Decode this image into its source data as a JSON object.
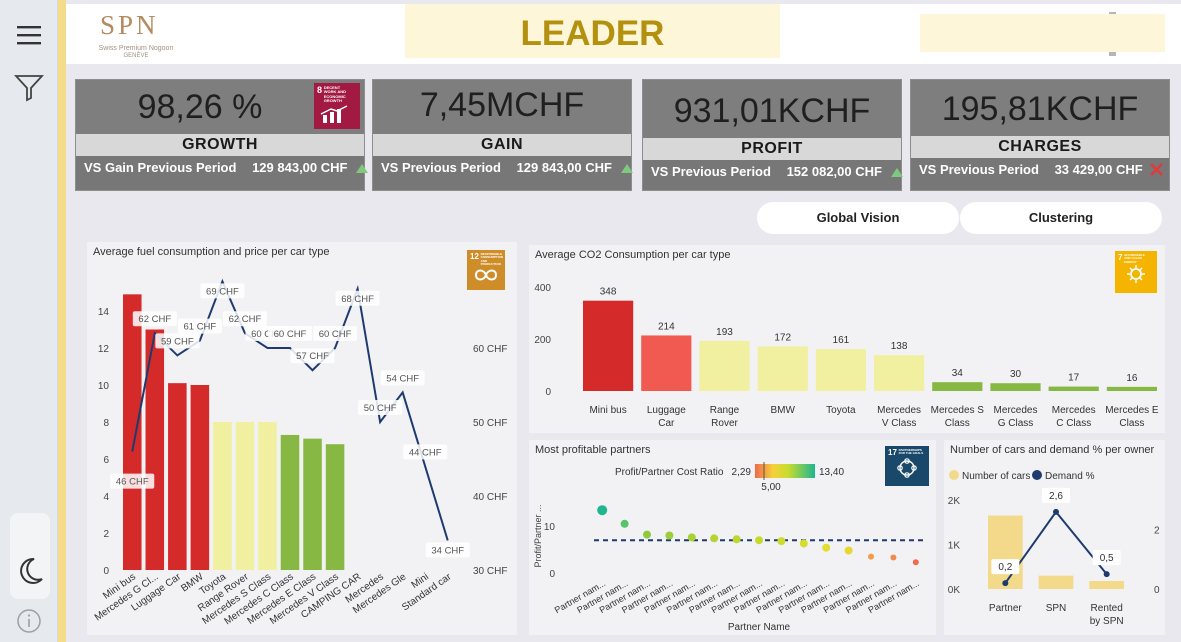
{
  "logo": {
    "name": "SPN",
    "subtitle": "Swiss Premium Nogoon",
    "city": "GENÈVE"
  },
  "header": {
    "title": "LEADER"
  },
  "colors": {
    "red": "#d42a2a",
    "light_red": "#f05a50",
    "yellow": "#f1f0a0",
    "green": "#86b843",
    "navy": "#1d3b6e",
    "gold": "#f4dc8a"
  },
  "kpis": [
    {
      "value": "98,26 %",
      "label": "GROWTH",
      "compare_label": "VS Gain Previous Period",
      "compare_value": "129 843,00 CHF",
      "trend": "up",
      "sdg": "8",
      "sdg_text": "DECENT WORK AND ECONOMIC GROWTH"
    },
    {
      "value": "7,45MCHF",
      "label": "GAIN",
      "compare_label": "VS Previous Period",
      "compare_value": "129 843,00 CHF",
      "trend": "up"
    },
    {
      "value": "931,01KCHF",
      "label": "PROFIT",
      "compare_label": "VS Previous Period",
      "compare_value": "152 082,00 CHF",
      "trend": "up"
    },
    {
      "value": "195,81KCHF",
      "label": "CHARGES",
      "compare_label": "VS Previous Period",
      "compare_value": "33 429,00 CHF",
      "trend": "down"
    }
  ],
  "buttons": {
    "global_vision": "Global Vision",
    "clustering": "Clustering"
  },
  "sdg_badges": {
    "fuel": {
      "number": "12",
      "text": "RESPONSIBLE CONSUMPTION AND PRODUCTION"
    },
    "co2": {
      "number": "7",
      "text": "AFFORDABLE AND CLEAN ENERGY"
    },
    "partners": {
      "number": "17",
      "text": "PARTNERSHIPS FOR THE GOALS"
    }
  },
  "chart_data": [
    {
      "type": "bar",
      "title": "Average fuel consumption and price per car type",
      "categories": [
        "Mini bus",
        "Mercedes G Cl...",
        "Luggage Car",
        "BMW",
        "Toyota",
        "Range Rover",
        "Mercedes S Class",
        "Mercedes C Class",
        "Mercedes E Class",
        "Mercedes V Class",
        "CAMPING CAR",
        "Mercedes",
        "Mercedes Gle",
        "Mini",
        "Standard car"
      ],
      "series": [
        {
          "values": [
            14.9,
            13.0,
            10.1,
            10.0,
            8.0,
            8.0,
            8.0,
            7.3,
            7.1,
            6.8,
            null,
            null,
            null,
            null,
            null
          ],
          "colors": [
            "#d42a2a",
            "#d42a2a",
            "#d42a2a",
            "#d42a2a",
            "#f1f0a0",
            "#f1f0a0",
            "#f1f0a0",
            "#86b843",
            "#86b843",
            "#86b843"
          ]
        },
        {
          "type": "line",
          "values": [
            46,
            62,
            59,
            61,
            69,
            62,
            60,
            60,
            57,
            60,
            68,
            50,
            54,
            44,
            34
          ],
          "data_labels": [
            "46 CHF",
            "62 CHF",
            "59 CHF",
            "61 CHF",
            "69 CHF",
            "62 CHF",
            "60 CHF",
            "60 CHF",
            "57 CHF",
            "60 CHF",
            "68 CHF",
            "50 CHF",
            "54 CHF",
            "44 CHF",
            "34 CHF"
          ]
        }
      ],
      "y_ticks": [
        "0",
        "2",
        "4",
        "6",
        "8",
        "10",
        "12",
        "14"
      ],
      "ylim": [
        0,
        16
      ],
      "y2_ticks": [
        "30 CHF",
        "40 CHF",
        "50 CHF",
        "60 CHF"
      ],
      "y2lim": [
        30,
        70
      ]
    },
    {
      "type": "bar",
      "title": "Average CO2 Consumption per car type",
      "categories": [
        "Mini bus",
        "Luggage Car",
        "Range Rover",
        "BMW",
        "Toyota",
        "Mercedes V Class",
        "Mercedes S Class",
        "Mercedes G Class",
        "Mercedes C Class",
        "Mercedes E Class"
      ],
      "category_lines": [
        [
          "Mini bus"
        ],
        [
          "Luggage",
          "Car"
        ],
        [
          "Range",
          "Rover"
        ],
        [
          "BMW"
        ],
        [
          "Toyota"
        ],
        [
          "Mercedes",
          "V Class"
        ],
        [
          "Mercedes S",
          "Class"
        ],
        [
          "Mercedes",
          "G Class"
        ],
        [
          "Mercedes",
          "C Class"
        ],
        [
          "Mercedes E",
          "Class"
        ]
      ],
      "values": [
        348,
        214,
        193,
        172,
        161,
        138,
        34,
        30,
        17,
        16
      ],
      "colors": [
        "#d42a2a",
        "#f05a50",
        "#f1f0a0",
        "#f1f0a0",
        "#f1f0a0",
        "#f1f0a0",
        "#86b843",
        "#86b843",
        "#86b843",
        "#86b843"
      ],
      "y_ticks": [
        "0",
        "200",
        "400"
      ],
      "ylim": [
        0,
        420
      ]
    },
    {
      "type": "scatter",
      "title": "Most profitable partners",
      "legend_title": "Profit/Partner Cost Ratio",
      "color_min": "2,29",
      "color_mid": "5,00",
      "color_max": "13,40",
      "xlabel": "Partner Name",
      "ylabel": "Profit/Partner ...",
      "y_ticks": [
        "0",
        "10"
      ],
      "ylim": [
        0,
        16
      ],
      "reference_y": 7,
      "categories": [
        "Partner nam...",
        "Partner nam...",
        "Partner nam...",
        "Partner nam...",
        "Partner nam...",
        "Partner nam...",
        "Partner nam...",
        "Partner nam...",
        "Partner nam...",
        "Partner nam...",
        "Partner nam...",
        "Partner nam...",
        "Partner nam...",
        "Partner nam...",
        "Partner nam..."
      ],
      "values": [
        13.4,
        10.5,
        8.2,
        8.0,
        7.6,
        7.4,
        7.2,
        7.0,
        6.8,
        6.3,
        5.4,
        4.8,
        3.5,
        3.3,
        2.3
      ],
      "point_colors": [
        "#1fb58f",
        "#56c46a",
        "#8ccc3c",
        "#9acf38",
        "#a8d233",
        "#b3d531",
        "#bcd72f",
        "#c4d92e",
        "#cddb2e",
        "#d6dc2e",
        "#e3dd30",
        "#e8d633",
        "#f49a4a",
        "#f38a4c",
        "#f06a4c"
      ]
    },
    {
      "type": "bar",
      "title": "Number of cars and demand % per owner",
      "categories": [
        "Partner",
        "SPN",
        "Rented by SPN"
      ],
      "category_lines": [
        [
          "Partner"
        ],
        [
          "SPN"
        ],
        [
          "Rented",
          "by SPN"
        ]
      ],
      "series": [
        {
          "name": "Number of cars",
          "values": [
            1650,
            300,
            180
          ],
          "color": "#f3d98a"
        },
        {
          "name": "Demand %",
          "type": "line",
          "values": [
            0.2,
            2.6,
            0.5
          ],
          "data_labels": [
            "0,2",
            "2,6",
            "0,5"
          ],
          "color": "#1d3b6e"
        }
      ],
      "y_ticks": [
        "0K",
        "1K",
        "2K"
      ],
      "ylim": [
        0,
        2000
      ],
      "y2_ticks": [
        "0",
        "2"
      ],
      "y2lim": [
        0,
        3
      ]
    }
  ]
}
